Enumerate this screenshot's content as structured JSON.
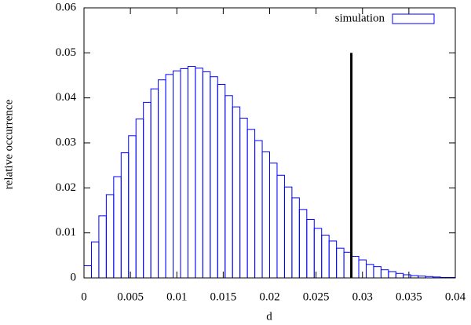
{
  "chart_data": {
    "type": "histogram",
    "xlabel": "d",
    "ylabel": "relative occurrence",
    "bins": [
      0,
      0.0008,
      0.0016,
      0.0024,
      0.0032,
      0.004,
      0.0048,
      0.0056,
      0.0064,
      0.0072,
      0.008,
      0.0088,
      0.0096,
      0.0104,
      0.0112,
      0.012,
      0.0128,
      0.0136,
      0.0144,
      0.0152,
      0.016,
      0.0168,
      0.0176,
      0.0184,
      0.0192,
      0.02,
      0.0208,
      0.0216,
      0.0224,
      0.0232,
      0.024,
      0.0248,
      0.0256,
      0.0264,
      0.0272,
      0.028,
      0.0288,
      0.0296,
      0.0304,
      0.0312,
      0.032,
      0.0328,
      0.0336,
      0.0344,
      0.0352,
      0.036,
      0.0368,
      0.0376,
      0.0384,
      0.0392,
      0.04
    ],
    "series": [
      {
        "name": "simulation",
        "color": "#0000ff",
        "values": [
          0.0027,
          0.008,
          0.0138,
          0.0185,
          0.0225,
          0.0278,
          0.0316,
          0.0353,
          0.039,
          0.042,
          0.044,
          0.0452,
          0.046,
          0.0465,
          0.047,
          0.0466,
          0.0458,
          0.0447,
          0.043,
          0.0405,
          0.038,
          0.0355,
          0.033,
          0.0305,
          0.028,
          0.0255,
          0.0228,
          0.0202,
          0.0178,
          0.0152,
          0.013,
          0.011,
          0.0095,
          0.0082,
          0.0066,
          0.0057,
          0.0048,
          0.004,
          0.003,
          0.0025,
          0.0018,
          0.0014,
          0.001,
          0.0007,
          0.0005,
          0.0004,
          0.0003,
          0.0002,
          0.0001,
          0.0001
        ]
      }
    ],
    "reference_line": {
      "x": 0.0288,
      "ymax": 0.05,
      "color": "#000000"
    },
    "xlim": [
      0,
      0.04
    ],
    "xticks": [
      0,
      0.005,
      0.01,
      0.015,
      0.02,
      0.025,
      0.03,
      0.035,
      0.04
    ],
    "ylim": [
      0,
      0.06
    ],
    "yticks": [
      0,
      0.01,
      0.02,
      0.03,
      0.04,
      0.05,
      0.06
    ],
    "legend": "upper right"
  }
}
